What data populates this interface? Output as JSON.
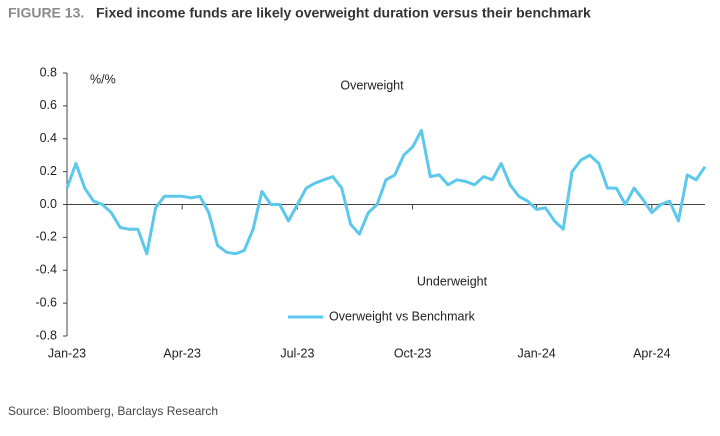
{
  "chart_data": {
    "type": "line",
    "figure_label": "FIGURE 13.",
    "title": "Fixed income funds are likely overweight duration versus their benchmark",
    "unit_label": "%/%",
    "annotations": [
      "Overweight",
      "Underweight"
    ],
    "source": "Source: Bloomberg, Barclays Research",
    "categories": [
      "Jan-23",
      null,
      null,
      null,
      null,
      null,
      null,
      null,
      null,
      null,
      null,
      null,
      null,
      "Apr-23",
      null,
      null,
      null,
      null,
      null,
      null,
      null,
      null,
      null,
      null,
      null,
      null,
      "Jul-23",
      null,
      null,
      null,
      null,
      null,
      null,
      null,
      null,
      null,
      null,
      null,
      null,
      "Oct-23",
      null,
      null,
      null,
      null,
      null,
      null,
      null,
      null,
      null,
      null,
      null,
      null,
      null,
      "Jan-24",
      null,
      null,
      null,
      null,
      null,
      null,
      null,
      null,
      null,
      null,
      null,
      null,
      "Apr-24",
      null,
      null,
      null,
      null,
      null,
      null
    ],
    "series": [
      {
        "name": "Overweight vs Benchmark",
        "color": "#5bc8ec",
        "values": [
          0.1,
          0.25,
          0.1,
          0.02,
          0.0,
          -0.05,
          -0.14,
          -0.15,
          -0.15,
          -0.3,
          -0.02,
          0.05,
          0.05,
          0.05,
          0.04,
          0.05,
          -0.05,
          -0.25,
          -0.29,
          -0.3,
          -0.28,
          -0.15,
          0.08,
          0.0,
          0.0,
          -0.1,
          0.0,
          0.1,
          0.13,
          0.15,
          0.17,
          0.1,
          -0.12,
          -0.18,
          -0.05,
          0.0,
          0.15,
          0.18,
          0.3,
          0.35,
          0.45,
          0.17,
          0.18,
          0.12,
          0.15,
          0.14,
          0.12,
          0.17,
          0.15,
          0.25,
          0.12,
          0.05,
          0.02,
          -0.03,
          -0.02,
          -0.1,
          -0.15,
          0.2,
          0.27,
          0.3,
          0.25,
          0.1,
          0.1,
          0.0,
          0.1,
          0.03,
          -0.05,
          0.0,
          0.02,
          -0.1,
          0.18,
          0.15,
          0.23
        ]
      }
    ],
    "ylim": [
      -0.8,
      0.8
    ],
    "yticks": [
      -0.8,
      -0.6,
      -0.4,
      -0.2,
      {
        "value": 0,
        "label": "0.0"
      },
      0.2,
      0.4,
      0.6,
      0.8
    ],
    "grid": false
  }
}
